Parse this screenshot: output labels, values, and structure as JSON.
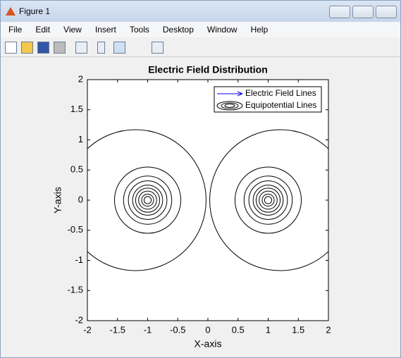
{
  "window": {
    "title": "Figure 1",
    "menu": [
      "File",
      "Edit",
      "View",
      "Insert",
      "Tools",
      "Desktop",
      "Window",
      "Help"
    ]
  },
  "chart_data": {
    "type": "contour",
    "title": "Electric Field Distribution",
    "xlabel": "X-axis",
    "ylabel": "Y-axis",
    "xlim": [
      -2,
      2
    ],
    "ylim": [
      -2,
      2
    ],
    "xticks": [
      -2,
      -1.5,
      -1,
      -0.5,
      0,
      0.5,
      1,
      1.5,
      2
    ],
    "yticks": [
      -2,
      -1.5,
      -1,
      -0.5,
      0,
      0.5,
      1,
      1.5,
      2
    ],
    "legend": {
      "loc": "northeast",
      "entries": [
        {
          "name": "Electric Field Lines",
          "color": "#0000ff"
        },
        {
          "name": "Equipotential Lines",
          "color": "#000000"
        }
      ]
    },
    "contour_color": "#000000",
    "contours": [
      {
        "x": -1.2,
        "y": 0,
        "r": 1.17
      },
      {
        "x": -1,
        "y": 0,
        "r": 0.55
      },
      {
        "x": -1,
        "y": 0,
        "r": 0.4
      },
      {
        "x": -1,
        "y": 0,
        "r": 0.32
      },
      {
        "x": -1,
        "y": 0,
        "r": 0.25
      },
      {
        "x": -1,
        "y": 0,
        "r": 0.2
      },
      {
        "x": -1,
        "y": 0,
        "r": 0.15
      },
      {
        "x": -1,
        "y": 0,
        "r": 0.1
      },
      {
        "x": -1,
        "y": 0,
        "r": 0.06
      },
      {
        "x": 1.2,
        "y": 0,
        "r": 1.17
      },
      {
        "x": 1,
        "y": 0,
        "r": 0.55
      },
      {
        "x": 1,
        "y": 0,
        "r": 0.4
      },
      {
        "x": 1,
        "y": 0,
        "r": 0.32
      },
      {
        "x": 1,
        "y": 0,
        "r": 0.25
      },
      {
        "x": 1,
        "y": 0,
        "r": 0.2
      },
      {
        "x": 1,
        "y": 0,
        "r": 0.15
      },
      {
        "x": 1,
        "y": 0,
        "r": 0.1
      },
      {
        "x": 1,
        "y": 0,
        "r": 0.06
      }
    ]
  }
}
